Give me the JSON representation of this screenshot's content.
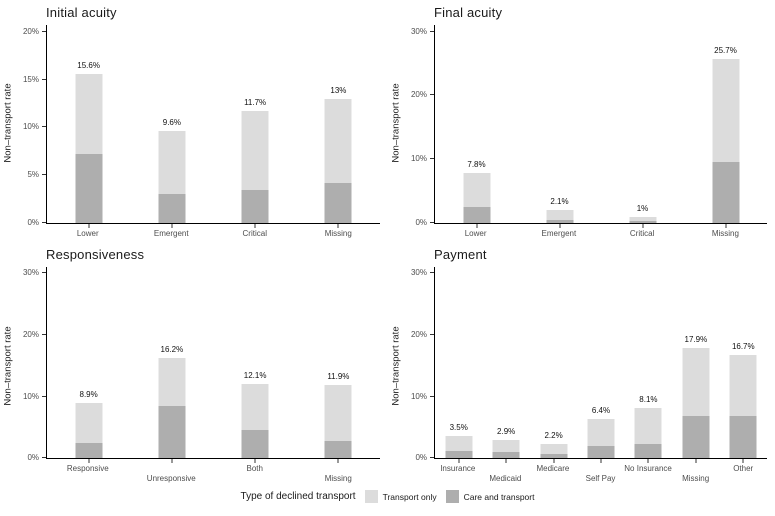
{
  "page": {
    "background": "#ffffff"
  },
  "colors": {
    "transport_only": "#DCDCDC",
    "care_and_transport": "#AEAEAE",
    "axis_line": "#000000",
    "axis_text": "#4d4d4d",
    "label_text": "#111111"
  },
  "legend": {
    "title": "Type of declined transport",
    "items": [
      {
        "label": "Transport only",
        "color": "#DCDCDC"
      },
      {
        "label": "Care and transport",
        "color": "#AEAEAE"
      }
    ]
  },
  "chart_data": [
    {
      "type": "bar",
      "title": "Initial acuity",
      "ylabel": "Non–transport rate",
      "xlabel": "",
      "ylim": [
        0,
        20
      ],
      "yticks": [
        0,
        5,
        10,
        15,
        20
      ],
      "ytick_labels": [
        "0%",
        "5%",
        "10%",
        "15%",
        "20%"
      ],
      "grid": false,
      "legend_position": "none",
      "categories": [
        "Lower",
        "Emergent",
        "Critical",
        "Missing"
      ],
      "category_label_rows": [
        0,
        0,
        0,
        0
      ],
      "series": [
        {
          "name": "Care and transport",
          "color": "#AEAEAE",
          "values": [
            7.2,
            3.0,
            3.4,
            4.2
          ]
        },
        {
          "name": "Transport only",
          "color": "#DCDCDC",
          "values": [
            8.4,
            6.6,
            8.3,
            8.8
          ]
        }
      ],
      "totals": [
        15.6,
        9.6,
        11.7,
        13
      ],
      "total_labels": [
        "15.6%",
        "9.6%",
        "11.7%",
        "13%"
      ]
    },
    {
      "type": "bar",
      "title": "Final acuity",
      "ylabel": "Non–transport rate",
      "xlabel": "",
      "ylim": [
        0,
        30
      ],
      "yticks": [
        0,
        10,
        20,
        30
      ],
      "ytick_labels": [
        "0%",
        "10%",
        "20%",
        "30%"
      ],
      "grid": false,
      "legend_position": "none",
      "categories": [
        "Lower",
        "Emergent",
        "Critical",
        "Missing"
      ],
      "category_label_rows": [
        0,
        0,
        0,
        0
      ],
      "series": [
        {
          "name": "Care and transport",
          "color": "#AEAEAE",
          "values": [
            2.5,
            0.5,
            0.3,
            9.5
          ]
        },
        {
          "name": "Transport only",
          "color": "#DCDCDC",
          "values": [
            5.3,
            1.6,
            0.7,
            16.2
          ]
        }
      ],
      "totals": [
        7.8,
        2.1,
        1,
        25.7
      ],
      "total_labels": [
        "7.8%",
        "2.1%",
        "1%",
        "25.7%"
      ]
    },
    {
      "type": "bar",
      "title": "Responsiveness",
      "ylabel": "Non–transport rate",
      "xlabel": "",
      "ylim": [
        0,
        30
      ],
      "yticks": [
        0,
        10,
        20,
        30
      ],
      "ytick_labels": [
        "0%",
        "10%",
        "20%",
        "30%"
      ],
      "grid": false,
      "legend_position": "none",
      "categories": [
        "Responsive",
        "Unresponsive",
        "Both",
        "Missing"
      ],
      "category_label_rows": [
        0,
        1,
        0,
        1
      ],
      "series": [
        {
          "name": "Care and transport",
          "color": "#AEAEAE",
          "values": [
            2.4,
            8.4,
            4.5,
            2.8
          ]
        },
        {
          "name": "Transport only",
          "color": "#DCDCDC",
          "values": [
            6.5,
            7.8,
            7.6,
            9.1
          ]
        }
      ],
      "totals": [
        8.9,
        16.2,
        12.1,
        11.9
      ],
      "total_labels": [
        "8.9%",
        "16.2%",
        "12.1%",
        "11.9%"
      ]
    },
    {
      "type": "bar",
      "title": "Payment",
      "ylabel": "Non–transport rate",
      "xlabel": "",
      "ylim": [
        0,
        30
      ],
      "yticks": [
        0,
        10,
        20,
        30
      ],
      "ytick_labels": [
        "0%",
        "10%",
        "20%",
        "30%"
      ],
      "grid": false,
      "legend_position": "none",
      "categories": [
        "Insurance",
        "Medicaid",
        "Medicare",
        "Self Pay",
        "No Insurance",
        "Missing",
        "Other"
      ],
      "category_label_rows": [
        0,
        1,
        0,
        1,
        0,
        1,
        0
      ],
      "series": [
        {
          "name": "Care and transport",
          "color": "#AEAEAE",
          "values": [
            1.2,
            0.9,
            0.7,
            2.0,
            2.3,
            6.8,
            6.8
          ]
        },
        {
          "name": "Transport only",
          "color": "#DCDCDC",
          "values": [
            2.3,
            2.0,
            1.5,
            4.4,
            5.8,
            11.1,
            9.9
          ]
        }
      ],
      "totals": [
        3.5,
        2.9,
        2.2,
        6.4,
        8.1,
        17.9,
        16.7
      ],
      "total_labels": [
        "3.5%",
        "2.9%",
        "2.2%",
        "6.4%",
        "8.1%",
        "17.9%",
        "16.7%"
      ]
    }
  ]
}
